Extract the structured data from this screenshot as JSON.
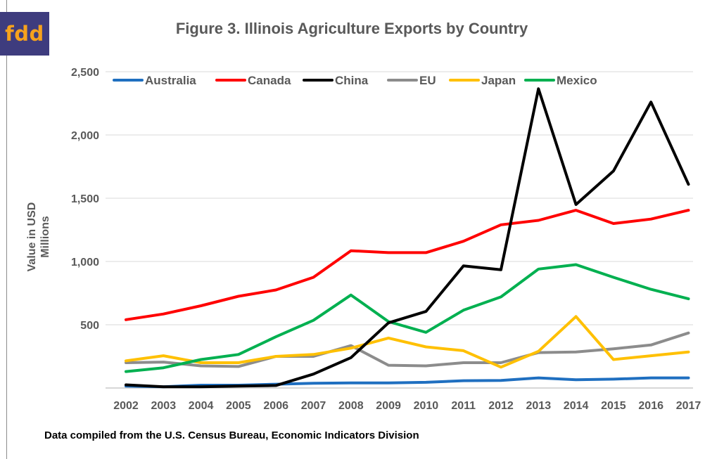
{
  "logo": {
    "text": "fdd",
    "bg_color": "#3e3c7e",
    "text_color": "#f6a21d"
  },
  "source_note": "Data compiled from the U.S. Census Bureau, Economic Indicators Division",
  "chart_data": {
    "type": "line",
    "title": "Figure 3. Illinois Agriculture Exports by Country",
    "xlabel": "",
    "ylabel": [
      "Value in USD",
      "Millions"
    ],
    "ylim": [
      0,
      2500
    ],
    "yticks": [
      500,
      1000,
      1500,
      2000,
      2500
    ],
    "ytick_labels": [
      "500",
      "1,000",
      "1,500",
      "2,000",
      "2,500"
    ],
    "grid": "horizontal",
    "legend_position": "top",
    "x": [
      "2002",
      "2003",
      "2004",
      "2005",
      "2006",
      "2007",
      "2008",
      "2009",
      "2010",
      "2011",
      "2012",
      "2013",
      "2014",
      "2015",
      "2016",
      "2017"
    ],
    "series": [
      {
        "name": "Australia",
        "color": "#1f6fc0",
        "values": [
          15,
          10,
          22,
          22,
          30,
          38,
          40,
          40,
          45,
          58,
          60,
          80,
          65,
          70,
          80,
          80
        ]
      },
      {
        "name": "Canada",
        "color": "#ff0000",
        "values": [
          540,
          585,
          650,
          725,
          775,
          875,
          1085,
          1070,
          1070,
          1160,
          1290,
          1325,
          1405,
          1300,
          1335,
          1405
        ]
      },
      {
        "name": "China",
        "color": "#000000",
        "values": [
          25,
          10,
          10,
          15,
          20,
          110,
          240,
          515,
          605,
          965,
          935,
          2365,
          1450,
          1715,
          2260,
          1610
        ]
      },
      {
        "name": "EU",
        "color": "#8c8c8c",
        "values": [
          200,
          205,
          175,
          170,
          250,
          250,
          335,
          180,
          175,
          200,
          200,
          280,
          285,
          310,
          340,
          435
        ]
      },
      {
        "name": "Japan",
        "color": "#ffc000",
        "values": [
          215,
          255,
          200,
          200,
          250,
          265,
          315,
          395,
          325,
          295,
          165,
          290,
          565,
          225,
          255,
          285
        ]
      },
      {
        "name": "Mexico",
        "color": "#00b050",
        "values": [
          130,
          160,
          225,
          265,
          405,
          535,
          735,
          525,
          440,
          615,
          720,
          940,
          975,
          875,
          780,
          705
        ]
      }
    ]
  }
}
